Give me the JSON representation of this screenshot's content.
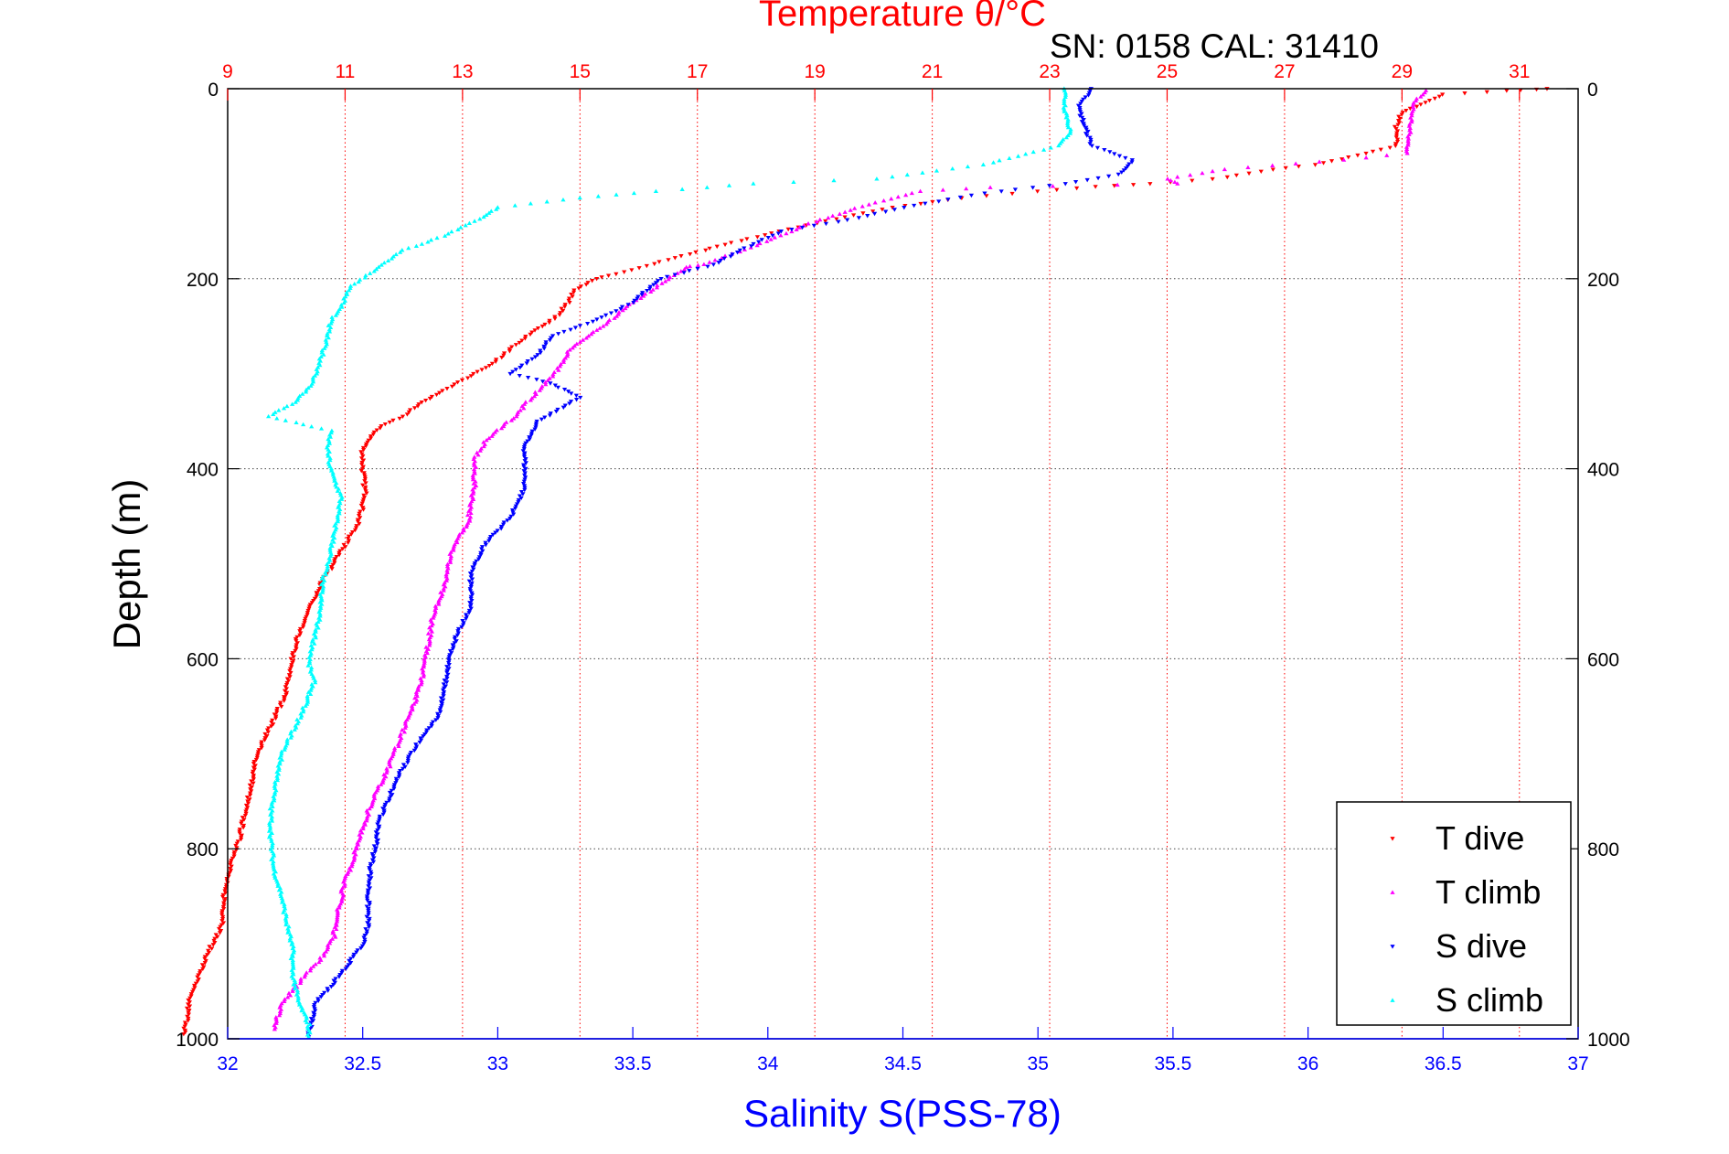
{
  "chart_data": {
    "type": "scatter",
    "title": "Temperature θ/°C",
    "subtitle": "SN: 0158  CAL: 31410",
    "xlabel": "Salinity S(PSS-78)",
    "ylabel": "Depth (m)",
    "xlim": [
      32,
      37
    ],
    "ylim": [
      1000,
      0
    ],
    "x_ticks": [
      "32",
      "32.5",
      "33",
      "33.5",
      "34",
      "34.5",
      "35",
      "35.5",
      "36",
      "36.5",
      "37"
    ],
    "y_ticks": [
      "0",
      "200",
      "400",
      "600",
      "800",
      "1000"
    ],
    "x2lim": [
      9,
      32
    ],
    "x2_ticks": [
      "9",
      "11",
      "13",
      "15",
      "17",
      "19",
      "21",
      "23",
      "25",
      "27",
      "29",
      "31"
    ],
    "grid": true,
    "legend_position": "bottom-right",
    "colors": {
      "t_dive": "#ff0000",
      "t_climb": "#ff00ff",
      "s_dive": "#0000ff",
      "s_climb": "#00ffff",
      "x_axis": "#0000ff",
      "x2_axis": "#ff0000",
      "axis": "#000000"
    },
    "series": [
      {
        "name": "T dive",
        "axis": "temperature",
        "marker": "triangle-down",
        "points": [
          [
            31.5,
            0
          ],
          [
            30.8,
            2
          ],
          [
            29.7,
            6
          ],
          [
            29,
            25
          ],
          [
            28.9,
            40
          ],
          [
            28.9,
            60
          ],
          [
            28.4,
            68
          ],
          [
            27.5,
            80
          ],
          [
            26.8,
            85
          ],
          [
            25.8,
            95
          ],
          [
            24.7,
            100
          ],
          [
            23.8,
            103
          ],
          [
            22.8,
            108
          ],
          [
            21.5,
            115
          ],
          [
            20.3,
            125
          ],
          [
            19.5,
            135
          ],
          [
            18.4,
            150
          ],
          [
            17.6,
            162
          ],
          [
            16.5,
            180
          ],
          [
            15.6,
            195
          ],
          [
            15.3,
            200
          ],
          [
            14.9,
            212
          ],
          [
            14.8,
            225
          ],
          [
            14.6,
            240
          ],
          [
            14.3,
            252
          ],
          [
            14.0,
            265
          ],
          [
            13.6,
            285
          ],
          [
            13.2,
            300
          ],
          [
            12.6,
            320
          ],
          [
            12.1,
            338
          ],
          [
            12.0,
            345
          ],
          [
            11.6,
            355
          ],
          [
            11.4,
            370
          ],
          [
            11.3,
            380
          ],
          [
            11.3,
            400
          ],
          [
            11.35,
            430
          ],
          [
            11.2,
            460
          ],
          [
            11.0,
            480
          ],
          [
            10.6,
            520
          ],
          [
            10.4,
            545
          ],
          [
            10.2,
            575
          ],
          [
            10.1,
            600
          ],
          [
            9.97,
            640
          ],
          [
            9.7,
            675
          ],
          [
            9.5,
            700
          ],
          [
            9.4,
            735
          ],
          [
            9.28,
            765
          ],
          [
            9.2,
            790
          ],
          [
            9.1,
            810
          ],
          [
            8.95,
            840
          ],
          [
            8.92,
            880
          ],
          [
            8.7,
            905
          ],
          [
            8.5,
            935
          ],
          [
            8.35,
            955
          ],
          [
            8.3,
            985
          ],
          [
            8.25,
            995
          ]
        ]
      },
      {
        "name": "T climb",
        "axis": "temperature",
        "marker": "triangle-up",
        "points": [
          [
            29.4,
            2
          ],
          [
            29.2,
            15
          ],
          [
            29.15,
            35
          ],
          [
            29.1,
            55
          ],
          [
            29.1,
            68
          ],
          [
            28.0,
            75
          ],
          [
            26.0,
            85
          ],
          [
            25.0,
            95
          ],
          [
            25.2,
            100
          ],
          [
            22.0,
            104
          ],
          [
            20.8,
            108
          ],
          [
            19.9,
            122
          ],
          [
            19.0,
            140
          ],
          [
            18.0,
            165
          ],
          [
            17.1,
            185
          ],
          [
            16.8,
            188
          ],
          [
            16.4,
            205
          ],
          [
            15.9,
            225
          ],
          [
            15.4,
            250
          ],
          [
            14.8,
            275
          ],
          [
            14.7,
            290
          ],
          [
            14.5,
            305
          ],
          [
            14.1,
            330
          ],
          [
            13.9,
            345
          ],
          [
            13.4,
            370
          ],
          [
            13.2,
            390
          ],
          [
            13.2,
            420
          ],
          [
            13.1,
            455
          ],
          [
            12.8,
            490
          ],
          [
            12.7,
            520
          ],
          [
            12.5,
            555
          ],
          [
            12.4,
            590
          ],
          [
            12.3,
            625
          ],
          [
            12.1,
            660
          ],
          [
            11.9,
            690
          ],
          [
            11.7,
            720
          ],
          [
            11.5,
            745
          ],
          [
            11.4,
            760
          ],
          [
            11.2,
            800
          ],
          [
            11.0,
            835
          ],
          [
            10.9,
            860
          ],
          [
            10.8,
            895
          ],
          [
            10.6,
            915
          ],
          [
            10.3,
            935
          ],
          [
            10.1,
            950
          ],
          [
            9.9,
            965
          ],
          [
            9.8,
            990
          ]
        ]
      },
      {
        "name": "S dive",
        "axis": "salinity",
        "points": [
          [
            35.2,
            0
          ],
          [
            35.15,
            20
          ],
          [
            35.18,
            45
          ],
          [
            35.2,
            60
          ],
          [
            35.35,
            75
          ],
          [
            35.3,
            90
          ],
          [
            35.1,
            100
          ],
          [
            34.8,
            110
          ],
          [
            34.5,
            125
          ],
          [
            34.3,
            138
          ],
          [
            34.05,
            150
          ],
          [
            33.9,
            170
          ],
          [
            33.8,
            185
          ],
          [
            33.6,
            200
          ],
          [
            33.5,
            225
          ],
          [
            33.35,
            245
          ],
          [
            33.2,
            260
          ],
          [
            33.15,
            280
          ],
          [
            33.05,
            300
          ],
          [
            33.2,
            310
          ],
          [
            33.3,
            325
          ],
          [
            33.15,
            350
          ],
          [
            33.1,
            375
          ],
          [
            33.1,
            400
          ],
          [
            33.1,
            420
          ],
          [
            33.05,
            450
          ],
          [
            32.95,
            480
          ],
          [
            32.9,
            510
          ],
          [
            32.9,
            545
          ],
          [
            32.85,
            575
          ],
          [
            32.82,
            600
          ],
          [
            32.8,
            635
          ],
          [
            32.78,
            660
          ],
          [
            32.7,
            690
          ],
          [
            32.64,
            720
          ],
          [
            32.6,
            745
          ],
          [
            32.56,
            770
          ],
          [
            32.55,
            795
          ],
          [
            32.53,
            820
          ],
          [
            32.52,
            850
          ],
          [
            32.52,
            880
          ],
          [
            32.5,
            900
          ],
          [
            32.45,
            920
          ],
          [
            32.38,
            945
          ],
          [
            32.33,
            960
          ],
          [
            32.31,
            985
          ],
          [
            32.3,
            998
          ]
        ],
        "marker": "triangle-down"
      },
      {
        "name": "S climb",
        "axis": "salinity",
        "marker": "triangle-up",
        "points": [
          [
            35.1,
            0
          ],
          [
            35.1,
            20
          ],
          [
            35.12,
            45
          ],
          [
            35.08,
            60
          ],
          [
            34.8,
            80
          ],
          [
            34.4,
            95
          ],
          [
            33.95,
            100
          ],
          [
            33.5,
            110
          ],
          [
            33.3,
            115
          ],
          [
            33.0,
            125
          ],
          [
            32.95,
            135
          ],
          [
            32.8,
            155
          ],
          [
            32.65,
            170
          ],
          [
            32.55,
            190
          ],
          [
            32.45,
            210
          ],
          [
            32.42,
            230
          ],
          [
            32.38,
            245
          ],
          [
            32.37,
            260
          ],
          [
            32.35,
            280
          ],
          [
            32.33,
            300
          ],
          [
            32.3,
            315
          ],
          [
            32.25,
            330
          ],
          [
            32.15,
            345
          ],
          [
            32.38,
            360
          ],
          [
            32.37,
            380
          ],
          [
            32.38,
            400
          ],
          [
            32.42,
            430
          ],
          [
            32.4,
            460
          ],
          [
            32.38,
            490
          ],
          [
            32.35,
            520
          ],
          [
            32.34,
            555
          ],
          [
            32.32,
            580
          ],
          [
            32.3,
            605
          ],
          [
            32.32,
            625
          ],
          [
            32.27,
            660
          ],
          [
            32.2,
            700
          ],
          [
            32.18,
            730
          ],
          [
            32.16,
            760
          ],
          [
            32.16,
            790
          ],
          [
            32.17,
            820
          ],
          [
            32.2,
            850
          ],
          [
            32.22,
            880
          ],
          [
            32.24,
            905
          ],
          [
            32.24,
            930
          ],
          [
            32.26,
            960
          ],
          [
            32.3,
            985
          ],
          [
            32.3,
            998
          ]
        ]
      }
    ]
  }
}
